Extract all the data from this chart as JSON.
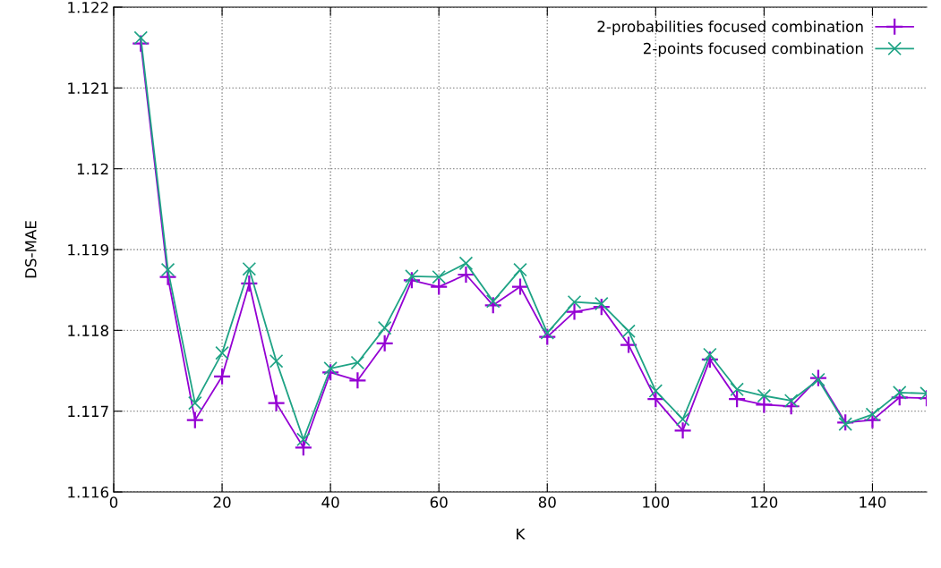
{
  "chart_data": {
    "type": "line",
    "xlabel": "K",
    "ylabel": "DS-MAE",
    "x": [
      5,
      10,
      15,
      20,
      25,
      30,
      35,
      40,
      45,
      50,
      55,
      60,
      65,
      70,
      75,
      80,
      85,
      90,
      95,
      100,
      105,
      110,
      115,
      120,
      125,
      130,
      135,
      140,
      145,
      150
    ],
    "series": [
      {
        "name": "2-probabilities focused combination",
        "color": "#9400d3",
        "marker": "plus",
        "values": [
          1.12155,
          1.11866,
          1.11689,
          1.11743,
          1.11858,
          1.1171,
          1.11655,
          1.11748,
          1.11738,
          1.11784,
          1.11862,
          1.11854,
          1.11869,
          1.11831,
          1.11854,
          1.11792,
          1.11823,
          1.11829,
          1.11782,
          1.11715,
          1.11676,
          1.11764,
          1.11715,
          1.11708,
          1.11706,
          1.11741,
          1.11686,
          1.11689,
          1.11717,
          1.11716
        ]
      },
      {
        "name": "2-points focused combination",
        "color": "#1fa385",
        "marker": "cross",
        "values": [
          1.12162,
          1.11875,
          1.1171,
          1.11772,
          1.11876,
          1.11762,
          1.11665,
          1.11753,
          1.1176,
          1.11803,
          1.11867,
          1.11866,
          1.11883,
          1.11836,
          1.11875,
          1.11797,
          1.11835,
          1.11833,
          1.11799,
          1.11725,
          1.1169,
          1.1177,
          1.11727,
          1.11719,
          1.11713,
          1.11739,
          1.11684,
          1.11696,
          1.11723,
          1.11722
        ]
      }
    ],
    "xlim": [
      0,
      150
    ],
    "xticks": [
      0,
      20,
      40,
      60,
      80,
      100,
      120,
      140
    ],
    "ylim": [
      1.116,
      1.122
    ],
    "yticks": [
      1.116,
      1.117,
      1.118,
      1.119,
      1.12,
      1.121,
      1.122
    ],
    "grid": true,
    "legend": "top right",
    "line_style": "solid"
  }
}
